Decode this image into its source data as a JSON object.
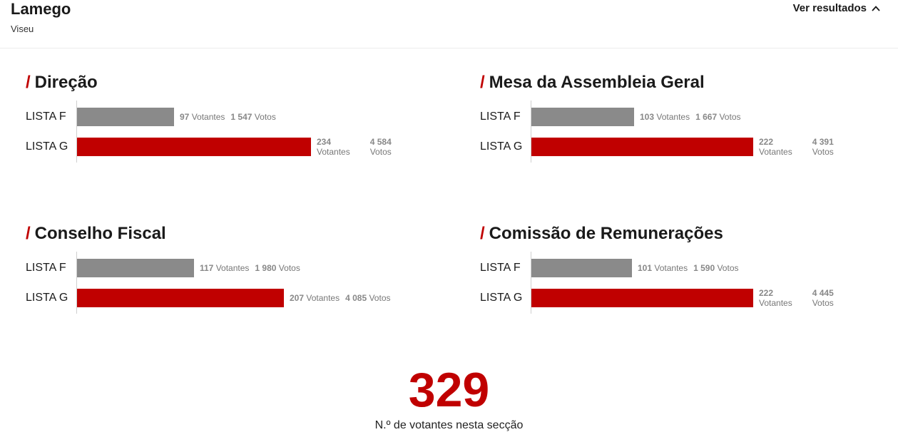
{
  "header": {
    "title": "Lamego",
    "subtitle": "Viseu",
    "toggle_label": "Ver resultados",
    "toggle_icon": "chevron-up-icon"
  },
  "colors": {
    "accent": "#c00000",
    "lista_f": "#8a8a8a",
    "lista_g": "#c00000"
  },
  "chart_data": [
    {
      "type": "bar",
      "title": "Direção",
      "categories": [
        "LISTA F",
        "LISTA G"
      ],
      "series": [
        {
          "name": "Votantes",
          "values": [
            97,
            234
          ]
        },
        {
          "name": "Votos",
          "values": [
            1547,
            4584
          ]
        }
      ],
      "display": {
        "votantes": [
          "97",
          "234"
        ],
        "votos": [
          "1 547",
          "4 584"
        ],
        "votantes_unit": "Votantes",
        "votos_unit": "Votos"
      }
    },
    {
      "type": "bar",
      "title": "Mesa da Assembleia Geral",
      "categories": [
        "LISTA F",
        "LISTA G"
      ],
      "series": [
        {
          "name": "Votantes",
          "values": [
            103,
            222
          ]
        },
        {
          "name": "Votos",
          "values": [
            1667,
            4391
          ]
        }
      ],
      "display": {
        "votantes": [
          "103",
          "222"
        ],
        "votos": [
          "1 667",
          "4 391"
        ],
        "votantes_unit": "Votantes",
        "votos_unit": "Votos"
      }
    },
    {
      "type": "bar",
      "title": "Conselho Fiscal",
      "categories": [
        "LISTA F",
        "LISTA G"
      ],
      "series": [
        {
          "name": "Votantes",
          "values": [
            117,
            207
          ]
        },
        {
          "name": "Votos",
          "values": [
            1980,
            4085
          ]
        }
      ],
      "display": {
        "votantes": [
          "117",
          "207"
        ],
        "votos": [
          "1 980",
          "4 085"
        ],
        "votantes_unit": "Votantes",
        "votos_unit": "Votos"
      }
    },
    {
      "type": "bar",
      "title": "Comissão de Remunerações",
      "categories": [
        "LISTA F",
        "LISTA G"
      ],
      "series": [
        {
          "name": "Votantes",
          "values": [
            101,
            222
          ]
        },
        {
          "name": "Votos",
          "values": [
            1590,
            4445
          ]
        }
      ],
      "display": {
        "votantes": [
          "101",
          "222"
        ],
        "votos": [
          "1 590",
          "4 445"
        ],
        "votantes_unit": "Votantes",
        "votos_unit": "Votos"
      }
    }
  ],
  "total": {
    "value": "329",
    "label": "N.º de votantes nesta secção"
  }
}
